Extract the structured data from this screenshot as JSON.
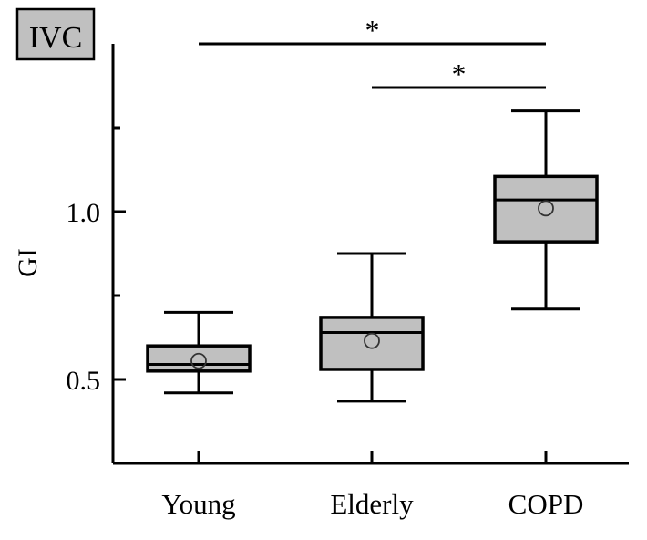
{
  "chart_data": {
    "type": "box",
    "panel_label": "IVC",
    "title": "",
    "xlabel": "",
    "ylabel": "GI",
    "ylim": [
      0.25,
      1.5
    ],
    "yticks": [
      0.5,
      1.0
    ],
    "ytick_labels": [
      "0.5",
      "1.0"
    ],
    "minor_yticks": [
      0.75,
      1.25
    ],
    "categories": [
      "Young",
      "Elderly",
      "COPD"
    ],
    "boxes": [
      {
        "category": "Young",
        "whisker_low": 0.46,
        "q1": 0.525,
        "median": 0.545,
        "q3": 0.6,
        "whisker_high": 0.7,
        "mean": 0.555
      },
      {
        "category": "Elderly",
        "whisker_low": 0.435,
        "q1": 0.53,
        "median": 0.64,
        "q3": 0.685,
        "whisker_high": 0.875,
        "mean": 0.615
      },
      {
        "category": "COPD",
        "whisker_low": 0.71,
        "q1": 0.91,
        "median": 1.035,
        "q3": 1.105,
        "whisker_high": 1.3,
        "mean": 1.01
      }
    ],
    "significance": [
      {
        "from": "Young",
        "to": "COPD",
        "label": "*"
      },
      {
        "from": "Elderly",
        "to": "COPD",
        "label": "*"
      }
    ],
    "box_fill": "#c0c0c0",
    "grid": false,
    "legend": "none"
  }
}
